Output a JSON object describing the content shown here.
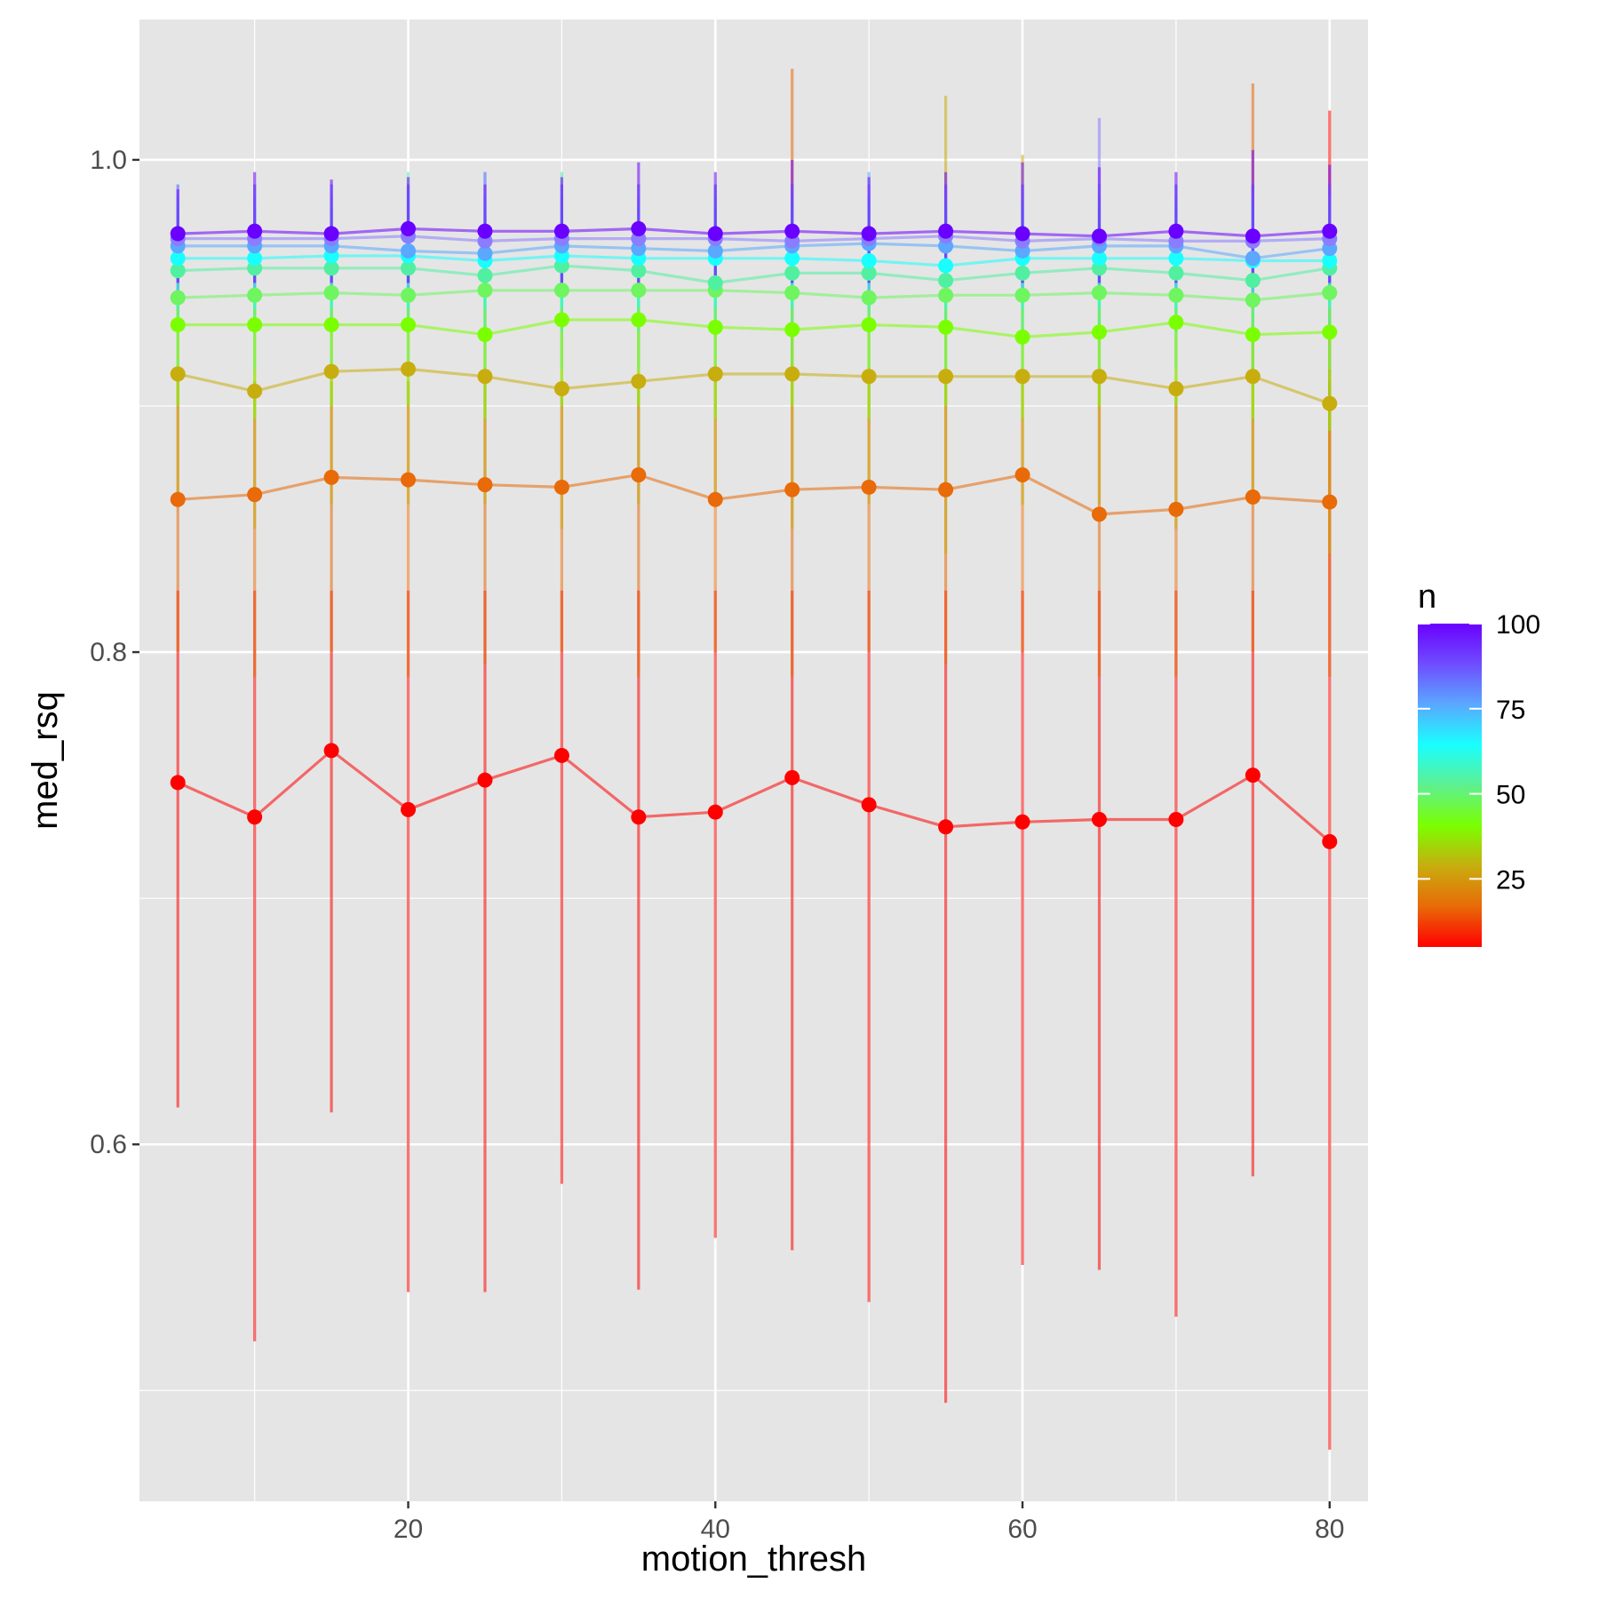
{
  "chart_data": {
    "type": "line",
    "title": "",
    "xlabel": "motion_thresh",
    "ylabel": "med_rsq",
    "xlim": [
      2.5,
      82.5
    ],
    "ylim": [
      0.455,
      1.057
    ],
    "x_ticks": [
      20,
      40,
      60,
      80
    ],
    "x_tick_labels": [
      "20",
      "40",
      "60",
      "80"
    ],
    "y_ticks": [
      0.6,
      0.8,
      1.0
    ],
    "y_tick_labels": [
      "0.6",
      "0.8",
      "1.0"
    ],
    "y_minor_gridlines": [
      0.5,
      0.7,
      0.9
    ],
    "x_minor_gridlines": [
      10,
      30,
      50,
      70
    ],
    "grid": true,
    "background": "#e5e5e5",
    "legend": {
      "title": "n",
      "position": "right",
      "type": "colorbar",
      "range": [
        5,
        100
      ],
      "ticks": [
        25,
        50,
        75,
        100
      ],
      "tick_labels": [
        "25",
        "50",
        "75",
        "100"
      ],
      "gradient": [
        "#ff0000",
        "#e86a08",
        "#c8ad0f",
        "#7aff00",
        "#5ef090",
        "#19ffff",
        "#5aa8ff",
        "#6f4dff",
        "#6a00ff"
      ]
    },
    "x": [
      5,
      10,
      15,
      20,
      25,
      30,
      35,
      40,
      45,
      50,
      55,
      60,
      65,
      70,
      75,
      80
    ],
    "series": [
      {
        "n": 5,
        "color": "#ff0000",
        "values": [
          0.747,
          0.733,
          0.76,
          0.736,
          0.748,
          0.758,
          0.733,
          0.735,
          0.749,
          0.738,
          0.729,
          0.731,
          0.732,
          0.732,
          0.75,
          0.723
        ],
        "lower": [
          0.615,
          0.52,
          0.613,
          0.54,
          0.54,
          0.584,
          0.541,
          0.562,
          0.557,
          0.536,
          0.495,
          0.551,
          0.549,
          0.53,
          0.587,
          0.476
        ],
        "upper": [
          0.825,
          0.825,
          0.825,
          0.825,
          0.825,
          0.825,
          0.825,
          0.825,
          0.825,
          0.825,
          0.825,
          0.825,
          0.825,
          0.825,
          0.825,
          1.02
        ]
      },
      {
        "n": 15,
        "color": "#e86a08",
        "values": [
          0.862,
          0.864,
          0.871,
          0.87,
          0.868,
          0.867,
          0.872,
          0.862,
          0.866,
          0.867,
          0.866,
          0.872,
          0.856,
          0.858,
          0.863,
          0.861
        ],
        "lower": [
          0.8,
          0.79,
          0.8,
          0.79,
          0.795,
          0.8,
          0.79,
          0.8,
          0.79,
          0.8,
          0.795,
          0.8,
          0.79,
          0.79,
          0.8,
          0.79
        ],
        "upper": [
          0.91,
          0.91,
          0.91,
          0.91,
          0.91,
          0.91,
          0.91,
          0.91,
          1.037,
          0.91,
          0.91,
          0.91,
          0.91,
          0.91,
          1.031,
          0.91
        ]
      },
      {
        "n": 25,
        "color": "#c8ad0f",
        "values": [
          0.913,
          0.906,
          0.914,
          0.915,
          0.912,
          0.907,
          0.91,
          0.913,
          0.913,
          0.912,
          0.912,
          0.912,
          0.912,
          0.907,
          0.912,
          0.901
        ],
        "lower": [
          0.86,
          0.85,
          0.86,
          0.86,
          0.86,
          0.85,
          0.86,
          0.86,
          0.85,
          0.86,
          0.84,
          0.86,
          0.86,
          0.85,
          0.86,
          0.84
        ],
        "upper": [
          0.95,
          0.95,
          0.95,
          0.95,
          0.95,
          0.95,
          0.95,
          0.95,
          0.95,
          0.95,
          1.026,
          1.002,
          0.95,
          0.95,
          0.95,
          0.95
        ]
      },
      {
        "n": 40,
        "color": "#7aff00",
        "values": [
          0.933,
          0.933,
          0.933,
          0.933,
          0.929,
          0.935,
          0.935,
          0.932,
          0.931,
          0.933,
          0.932,
          0.928,
          0.93,
          0.934,
          0.929,
          0.93
        ],
        "lower": [
          0.9,
          0.895,
          0.9,
          0.9,
          0.895,
          0.9,
          0.9,
          0.895,
          0.9,
          0.895,
          0.9,
          0.895,
          0.9,
          0.9,
          0.895,
          0.89
        ],
        "upper": [
          0.965,
          0.965,
          0.965,
          0.965,
          0.965,
          0.965,
          0.965,
          0.965,
          0.965,
          0.965,
          0.965,
          0.965,
          0.965,
          0.965,
          0.965,
          0.965
        ]
      },
      {
        "n": 50,
        "color": "#6ef560",
        "values": [
          0.944,
          0.945,
          0.946,
          0.945,
          0.947,
          0.947,
          0.947,
          0.947,
          0.946,
          0.944,
          0.945,
          0.945,
          0.946,
          0.945,
          0.943,
          0.946
        ],
        "lower": [
          0.915,
          0.915,
          0.915,
          0.915,
          0.915,
          0.915,
          0.915,
          0.915,
          0.915,
          0.915,
          0.915,
          0.915,
          0.915,
          0.915,
          0.915,
          0.915
        ],
        "upper": [
          0.975,
          0.975,
          0.975,
          0.975,
          0.975,
          0.975,
          0.975,
          0.975,
          0.975,
          0.975,
          0.975,
          0.975,
          0.975,
          0.975,
          0.975,
          0.975
        ]
      },
      {
        "n": 60,
        "color": "#50f0a0",
        "values": [
          0.955,
          0.956,
          0.956,
          0.956,
          0.953,
          0.957,
          0.955,
          0.95,
          0.954,
          0.954,
          0.951,
          0.954,
          0.956,
          0.954,
          0.951,
          0.956
        ],
        "lower": [
          0.93,
          0.93,
          0.93,
          0.93,
          0.93,
          0.93,
          0.93,
          0.93,
          0.93,
          0.93,
          0.93,
          0.93,
          0.93,
          0.93,
          0.93,
          0.93
        ],
        "upper": [
          0.98,
          0.98,
          0.98,
          0.995,
          0.98,
          0.995,
          0.98,
          0.98,
          0.98,
          0.98,
          0.98,
          0.98,
          0.98,
          0.98,
          0.98,
          0.98
        ]
      },
      {
        "n": 70,
        "color": "#19ffff",
        "values": [
          0.96,
          0.96,
          0.961,
          0.961,
          0.959,
          0.961,
          0.96,
          0.96,
          0.96,
          0.959,
          0.957,
          0.96,
          0.96,
          0.96,
          0.959,
          0.959
        ],
        "lower": [
          0.94,
          0.94,
          0.94,
          0.94,
          0.94,
          0.94,
          0.94,
          0.94,
          0.94,
          0.94,
          0.94,
          0.94,
          0.94,
          0.94,
          0.94,
          0.94
        ],
        "upper": [
          0.985,
          0.985,
          0.985,
          0.985,
          0.985,
          0.985,
          0.985,
          0.985,
          0.985,
          0.985,
          0.985,
          0.985,
          0.985,
          0.985,
          0.985,
          0.985
        ]
      },
      {
        "n": 80,
        "color": "#5aa8ff",
        "values": [
          0.965,
          0.965,
          0.965,
          0.963,
          0.962,
          0.965,
          0.964,
          0.963,
          0.965,
          0.966,
          0.965,
          0.963,
          0.965,
          0.965,
          0.96,
          0.964
        ],
        "lower": [
          0.945,
          0.945,
          0.945,
          0.945,
          0.945,
          0.945,
          0.945,
          0.945,
          0.945,
          0.945,
          0.945,
          0.945,
          0.945,
          0.945,
          0.945,
          0.945
        ],
        "upper": [
          0.99,
          0.99,
          0.99,
          0.99,
          0.995,
          0.99,
          0.99,
          0.99,
          0.99,
          0.995,
          0.99,
          0.99,
          0.99,
          0.99,
          0.99,
          0.99
        ]
      },
      {
        "n": 90,
        "color": "#8a7dff",
        "values": [
          0.968,
          0.968,
          0.968,
          0.969,
          0.967,
          0.968,
          0.968,
          0.968,
          0.967,
          0.968,
          0.969,
          0.967,
          0.968,
          0.967,
          0.967,
          0.968
        ],
        "lower": [
          0.95,
          0.95,
          0.95,
          0.95,
          0.95,
          0.95,
          0.95,
          0.95,
          0.95,
          0.95,
          0.95,
          0.95,
          0.95,
          0.95,
          0.95,
          0.95
        ],
        "upper": [
          0.99,
          0.99,
          0.99,
          0.99,
          0.995,
          0.99,
          0.99,
          0.99,
          0.99,
          0.99,
          0.99,
          0.99,
          1.017,
          0.99,
          0.99,
          0.99
        ]
      },
      {
        "n": 100,
        "color": "#6a00ff",
        "values": [
          0.97,
          0.971,
          0.97,
          0.972,
          0.971,
          0.971,
          0.972,
          0.97,
          0.971,
          0.97,
          0.971,
          0.97,
          0.969,
          0.971,
          0.969,
          0.971
        ],
        "lower": [
          0.95,
          0.95,
          0.95,
          0.95,
          0.95,
          0.95,
          0.95,
          0.95,
          0.95,
          0.95,
          0.95,
          0.95,
          0.95,
          0.95,
          0.95,
          0.95
        ],
        "upper": [
          0.988,
          0.995,
          0.992,
          0.993,
          0.99,
          0.993,
          0.999,
          0.995,
          1.0,
          0.993,
          0.995,
          0.999,
          0.997,
          0.995,
          1.004,
          0.998
        ]
      }
    ]
  }
}
